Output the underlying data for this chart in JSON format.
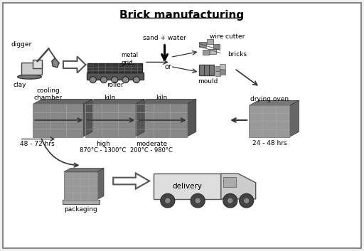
{
  "title": "Brick manufacturing",
  "background_color": "#f0f0f0",
  "border_color": "#888888",
  "digger_label": "digger",
  "clay_label": "clay",
  "roller_label": "roller",
  "metal_grid_label": "metal\ngrid",
  "sand_water_label": "sand + water",
  "wire_cutter_label": "wire cutter",
  "bricks_label": "bricks",
  "or_label": "or",
  "mould_label": "mould",
  "drying_oven_label": "drying oven",
  "drying_time_label": "24 - 48 hrs",
  "cooling_chamber_label": "cooling\nchamber",
  "kiln_label1": "kiln",
  "kiln_label2": "kiln",
  "hrs_label": "48 - 72 hrs",
  "high_label": "high",
  "temp_high_label": "870°C - 1300°C",
  "moderate_label": "moderate",
  "temp_mod_label": "200°C - 980°C",
  "packaging_label": "packaging",
  "delivery_label": "delivery",
  "fig_width": 5.12,
  "fig_height": 3.53,
  "dpi": 100
}
